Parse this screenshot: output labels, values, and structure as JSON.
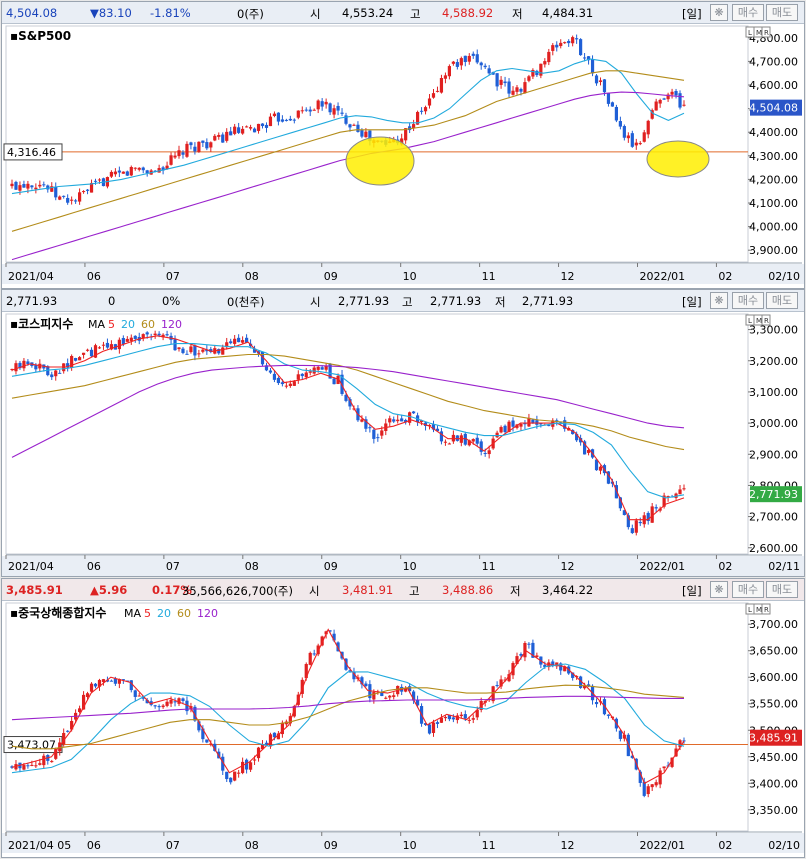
{
  "panels": [
    {
      "id": "sp500",
      "header": {
        "price": "4,504.08",
        "change": "▼83.10",
        "rate": "-1.81%",
        "volume": "0(주)",
        "open_label": "시",
        "open": "4,553.24",
        "high_label": "고",
        "high": "4,588.92",
        "low_label": "저",
        "low": "4,484.31",
        "period": "[일]",
        "buy": "매수",
        "sell": "매도"
      },
      "title": "S&P500",
      "ma_legend": [],
      "current_label": "4,504.08",
      "ref_label": "4,316.46",
      "x_labels": [
        "2021/04",
        "06",
        "07",
        "08",
        "09",
        "10",
        "11",
        "12",
        "2022/01",
        "02"
      ],
      "date_end": "02/10",
      "colors": {
        "price_bg": "#2a55c8",
        "ref_bg": "#ffffff"
      }
    },
    {
      "id": "kospi",
      "header": {
        "price": "2,771.93",
        "change": "0",
        "rate": "0%",
        "volume": "0(천주)",
        "open_label": "시",
        "open": "2,771.93",
        "high_label": "고",
        "high": "2,771.93",
        "low_label": "저",
        "low": "2,771.93",
        "period": "[일]",
        "buy": "매수",
        "sell": "매도"
      },
      "title": "코스피지수",
      "ma_legend": [
        "MA",
        "5",
        "20",
        "60",
        "120"
      ],
      "current_label": "2,771.93",
      "ref_label": "",
      "x_labels": [
        "2021/04",
        "06",
        "07",
        "08",
        "09",
        "10",
        "11",
        "12",
        "2022/01",
        "02"
      ],
      "date_end": "02/11",
      "colors": {
        "price_bg": "#33aa44"
      }
    },
    {
      "id": "shanghai",
      "header": {
        "price": "3,485.91",
        "change": "▲5.96",
        "rate": "0.17%",
        "volume": "35,566,626,700(주)",
        "open_label": "시",
        "open": "3,481.91",
        "high_label": "고",
        "high": "3,488.86",
        "low_label": "저",
        "low": "3,464.22",
        "period": "[일]",
        "buy": "매수",
        "sell": "매도"
      },
      "title": "중국상해종합지수",
      "ma_legend": [
        "MA",
        "5",
        "20",
        "60",
        "120"
      ],
      "current_label": "3,485.91",
      "ref_label": "3,473.07",
      "x_labels": [
        "2021/04 05",
        "06",
        "07",
        "08",
        "09",
        "10",
        "11",
        "12",
        "2022/01",
        "02"
      ],
      "date_end": "02/10",
      "colors": {
        "price_bg": "#dd2222"
      }
    }
  ],
  "chart_data": [
    {
      "type": "candlestick",
      "title": "S&P500",
      "ylim": [
        3850,
        4850
      ],
      "yticks": [
        3900,
        4000,
        4100,
        4200,
        4300,
        4400,
        4500,
        4600,
        4700,
        4800
      ],
      "ref_line": 4316.46,
      "close_series": [
        [
          "2021/04",
          4170
        ],
        [
          "2021/04",
          4190
        ],
        [
          "2021/05",
          4180
        ],
        [
          "2021/05",
          4120
        ],
        [
          "2021/05",
          4110
        ],
        [
          "2021/05",
          4160
        ],
        [
          "2021/05",
          4200
        ],
        [
          "2021/06",
          4220
        ],
        [
          "2021/06",
          4250
        ],
        [
          "2021/06",
          4230
        ],
        [
          "2021/06",
          4270
        ],
        [
          "2021/07",
          4320
        ],
        [
          "2021/07",
          4350
        ],
        [
          "2021/07",
          4360
        ],
        [
          "2021/07",
          4400
        ],
        [
          "2021/08",
          4400
        ],
        [
          "2021/08",
          4430
        ],
        [
          "2021/08",
          4460
        ],
        [
          "2021/08",
          4470
        ],
        [
          "2021/08",
          4500
        ],
        [
          "2021/09",
          4520
        ],
        [
          "2021/09",
          4470
        ],
        [
          "2021/09",
          4430
        ],
        [
          "2021/09",
          4360
        ],
        [
          "2021/10",
          4350
        ],
        [
          "2021/10",
          4390
        ],
        [
          "2021/10",
          4470
        ],
        [
          "2021/10",
          4560
        ],
        [
          "2021/11",
          4680
        ],
        [
          "2021/11",
          4700
        ],
        [
          "2021/11",
          4700
        ],
        [
          "2021/11",
          4620
        ],
        [
          "2021/12",
          4560
        ],
        [
          "2021/12",
          4620
        ],
        [
          "2021/12",
          4700
        ],
        [
          "2021/12",
          4780
        ],
        [
          "2022/01",
          4790
        ],
        [
          "2022/01",
          4680
        ],
        [
          "2022/01",
          4560
        ],
        [
          "2022/01",
          4400
        ],
        [
          "2022/01",
          4330
        ],
        [
          "2022/02",
          4500
        ],
        [
          "2022/02",
          4580
        ],
        [
          "2022/02",
          4504.08
        ]
      ],
      "ma": [
        {
          "name": "20",
          "color": "#22aadd",
          "values": [
            4140,
            4150,
            4160,
            4170,
            4175,
            4180,
            4190,
            4200,
            4215,
            4230,
            4245,
            4260,
            4280,
            4300,
            4320,
            4340,
            4360,
            4380,
            4400,
            4420,
            4440,
            4460,
            4470,
            4465,
            4450,
            4440,
            4440,
            4460,
            4500,
            4560,
            4620,
            4660,
            4670,
            4660,
            4650,
            4660,
            4690,
            4710,
            4700,
            4650,
            4560,
            4480,
            4450,
            4480
          ]
        },
        {
          "name": "60",
          "color": "#b38c1a",
          "values": [
            3980,
            4000,
            4020,
            4040,
            4060,
            4080,
            4100,
            4120,
            4140,
            4160,
            4180,
            4200,
            4220,
            4240,
            4260,
            4280,
            4300,
            4320,
            4340,
            4360,
            4380,
            4400,
            4410,
            4410,
            4410,
            4410,
            4420,
            4430,
            4450,
            4470,
            4500,
            4530,
            4550,
            4570,
            4590,
            4610,
            4630,
            4650,
            4660,
            4660,
            4650,
            4640,
            4630,
            4620
          ]
        },
        {
          "name": "120",
          "color": "#9922cc",
          "values": [
            3860,
            3880,
            3900,
            3920,
            3940,
            3960,
            3980,
            4000,
            4020,
            4040,
            4060,
            4080,
            4100,
            4120,
            4140,
            4160,
            4180,
            4200,
            4220,
            4240,
            4260,
            4280,
            4295,
            4310,
            4320,
            4330,
            4345,
            4360,
            4380,
            4400,
            4420,
            4440,
            4460,
            4480,
            4500,
            4520,
            4540,
            4555,
            4565,
            4570,
            4568,
            4562,
            4555,
            4550
          ]
        }
      ],
      "current": 4504.08
    },
    {
      "type": "candlestick",
      "title": "코스피지수",
      "ylim": [
        2580,
        3350
      ],
      "yticks": [
        2600,
        2700,
        2800,
        2900,
        3000,
        3100,
        3200,
        3300
      ],
      "close_series": [
        [
          "2021/04",
          3170
        ],
        [
          "2021/04",
          3200
        ],
        [
          "2021/05",
          3160
        ],
        [
          "2021/05",
          3190
        ],
        [
          "2021/05",
          3220
        ],
        [
          "2021/06",
          3240
        ],
        [
          "2021/06",
          3260
        ],
        [
          "2021/06",
          3280
        ],
        [
          "2021/07",
          3290
        ],
        [
          "2021/07",
          3250
        ],
        [
          "2021/07",
          3230
        ],
        [
          "2021/07",
          3220
        ],
        [
          "2021/08",
          3250
        ],
        [
          "2021/08",
          3280
        ],
        [
          "2021/08",
          3160
        ],
        [
          "2021/08",
          3100
        ],
        [
          "2021/09",
          3150
        ],
        [
          "2021/09",
          3180
        ],
        [
          "2021/09",
          3130
        ],
        [
          "2021/10",
          3010
        ],
        [
          "2021/10",
          2960
        ],
        [
          "2021/10",
          3010
        ],
        [
          "2021/10",
          3020
        ],
        [
          "2021/11",
          2980
        ],
        [
          "2021/11",
          2940
        ],
        [
          "2021/11",
          2950
        ],
        [
          "2021/11",
          2900
        ],
        [
          "2021/12",
          2980
        ],
        [
          "2021/12",
          3010
        ],
        [
          "2021/12",
          3000
        ],
        [
          "2021/12",
          3000
        ],
        [
          "2022/01",
          2960
        ],
        [
          "2022/01",
          2880
        ],
        [
          "2022/01",
          2800
        ],
        [
          "2022/01",
          2660
        ],
        [
          "2022/02",
          2700
        ],
        [
          "2022/02",
          2760
        ],
        [
          "2022/02",
          2771.93
        ]
      ],
      "ma": [
        {
          "name": "5",
          "color": "#ee2222",
          "values": [
            3170,
            3190,
            3180,
            3180,
            3200,
            3230,
            3250,
            3270,
            3280,
            3270,
            3250,
            3230,
            3240,
            3260,
            3200,
            3130,
            3140,
            3160,
            3140,
            3030,
            2980,
            2990,
            3010,
            2990,
            2950,
            2950,
            2910,
            2960,
            3000,
            3000,
            3000,
            2970,
            2900,
            2820,
            2690,
            2690,
            2740,
            2760
          ]
        },
        {
          "name": "20",
          "color": "#22aadd",
          "values": [
            3150,
            3160,
            3170,
            3175,
            3185,
            3200,
            3215,
            3230,
            3245,
            3255,
            3255,
            3250,
            3245,
            3245,
            3225,
            3190,
            3170,
            3165,
            3155,
            3110,
            3060,
            3030,
            3020,
            3000,
            2985,
            2970,
            2960,
            2960,
            2975,
            2990,
            3000,
            2995,
            2970,
            2930,
            2850,
            2780,
            2760,
            2770
          ]
        },
        {
          "name": "60",
          "color": "#b38c1a",
          "values": [
            3080,
            3090,
            3100,
            3110,
            3120,
            3135,
            3150,
            3165,
            3180,
            3195,
            3205,
            3210,
            3215,
            3220,
            3220,
            3215,
            3205,
            3195,
            3185,
            3170,
            3150,
            3130,
            3110,
            3090,
            3070,
            3055,
            3040,
            3030,
            3020,
            3010,
            3005,
            3000,
            2990,
            2975,
            2955,
            2940,
            2925,
            2915
          ]
        },
        {
          "name": "120",
          "color": "#9922cc",
          "values": [
            2890,
            2920,
            2950,
            2980,
            3010,
            3040,
            3070,
            3100,
            3125,
            3145,
            3160,
            3170,
            3175,
            3180,
            3183,
            3185,
            3185,
            3184,
            3182,
            3178,
            3172,
            3165,
            3155,
            3145,
            3135,
            3125,
            3115,
            3105,
            3095,
            3085,
            3075,
            3060,
            3045,
            3030,
            3015,
            3000,
            2990,
            2985
          ]
        }
      ],
      "current": 2771.93
    },
    {
      "type": "candlestick",
      "title": "중국상해종합지수",
      "ylim": [
        3310,
        3740
      ],
      "yticks": [
        3350,
        3400,
        3450,
        3500,
        3550,
        3600,
        3650,
        3700
      ],
      "ref_line": 3473.07,
      "close_series": [
        [
          "2021/04",
          3430
        ],
        [
          "2021/04",
          3440
        ],
        [
          "2021/05",
          3450
        ],
        [
          "2021/05",
          3520
        ],
        [
          "2021/05",
          3590
        ],
        [
          "2021/06",
          3600
        ],
        [
          "2021/06",
          3580
        ],
        [
          "2021/06",
          3540
        ],
        [
          "2021/07",
          3560
        ],
        [
          "2021/07",
          3540
        ],
        [
          "2021/07",
          3470
        ],
        [
          "2021/07",
          3410
        ],
        [
          "2021/08",
          3440
        ],
        [
          "2021/08",
          3480
        ],
        [
          "2021/08",
          3520
        ],
        [
          "2021/09",
          3630
        ],
        [
          "2021/09",
          3700
        ],
        [
          "2021/09",
          3610
        ],
        [
          "2021/10",
          3570
        ],
        [
          "2021/10",
          3570
        ],
        [
          "2021/10",
          3580
        ],
        [
          "2021/11",
          3500
        ],
        [
          "2021/11",
          3530
        ],
        [
          "2021/11",
          3520
        ],
        [
          "2021/11",
          3560
        ],
        [
          "2021/12",
          3600
        ],
        [
          "2021/12",
          3660
        ],
        [
          "2021/12",
          3620
        ],
        [
          "2021/12",
          3620
        ],
        [
          "2022/01",
          3580
        ],
        [
          "2022/01",
          3540
        ],
        [
          "2022/01",
          3480
        ],
        [
          "2022/01",
          3380
        ],
        [
          "2022/02",
          3430
        ],
        [
          "2022/02",
          3485.91
        ]
      ],
      "ma": [
        {
          "name": "5",
          "color": "#ee2222",
          "values": [
            3430,
            3440,
            3450,
            3500,
            3570,
            3600,
            3590,
            3550,
            3560,
            3545,
            3480,
            3420,
            3440,
            3475,
            3510,
            3610,
            3690,
            3620,
            3575,
            3570,
            3580,
            3510,
            3530,
            3520,
            3555,
            3595,
            3650,
            3625,
            3620,
            3585,
            3545,
            3490,
            3400,
            3420,
            3480
          ]
        },
        {
          "name": "20",
          "color": "#22aadd",
          "values": [
            3420,
            3425,
            3430,
            3445,
            3480,
            3520,
            3550,
            3570,
            3570,
            3565,
            3545,
            3510,
            3480,
            3470,
            3480,
            3520,
            3580,
            3610,
            3610,
            3600,
            3590,
            3570,
            3555,
            3545,
            3540,
            3555,
            3590,
            3620,
            3625,
            3615,
            3590,
            3560,
            3510,
            3480,
            3470
          ]
        },
        {
          "name": "60",
          "color": "#b38c1a",
          "values": [
            3470,
            3465,
            3465,
            3470,
            3475,
            3485,
            3495,
            3505,
            3515,
            3520,
            3520,
            3515,
            3510,
            3510,
            3515,
            3525,
            3540,
            3555,
            3565,
            3575,
            3580,
            3580,
            3575,
            3570,
            3570,
            3572,
            3578,
            3582,
            3585,
            3584,
            3580,
            3575,
            3568,
            3565,
            3562
          ]
        },
        {
          "name": "120",
          "color": "#9922cc",
          "values": [
            3520,
            3522,
            3524,
            3526,
            3528,
            3530,
            3532,
            3535,
            3538,
            3540,
            3540,
            3540,
            3540,
            3541,
            3543,
            3546,
            3550,
            3553,
            3555,
            3556,
            3557,
            3557,
            3557,
            3557,
            3558,
            3560,
            3562,
            3563,
            3564,
            3564,
            3563,
            3562,
            3561,
            3560,
            3560
          ]
        }
      ],
      "current": 3485.91
    }
  ]
}
